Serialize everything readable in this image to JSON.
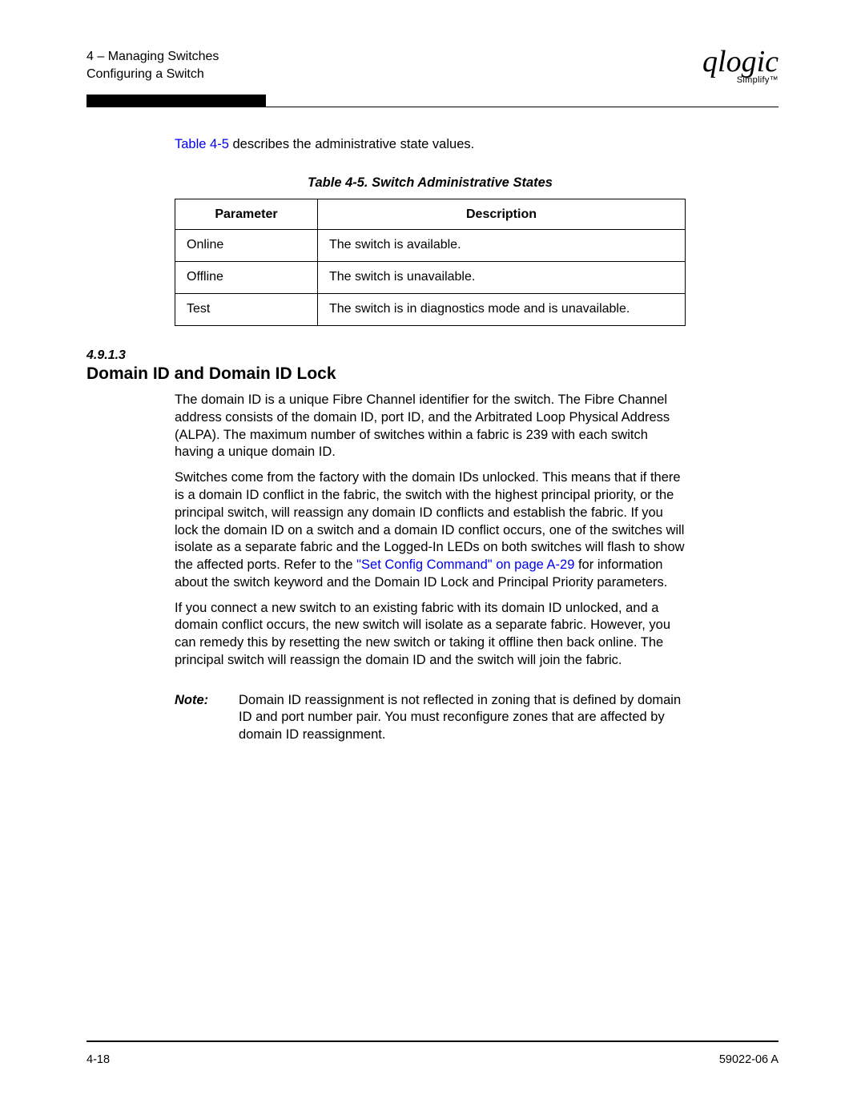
{
  "header": {
    "chapter_line": "4 – Managing Switches",
    "section_line": "Configuring a Switch",
    "logo_text": "qlogic",
    "logo_sub": "Simplify™"
  },
  "intro": {
    "pre_link": "",
    "link_text": "Table 4-5",
    "post_link": " describes the administrative state values."
  },
  "table": {
    "caption": "Table 4-5. Switch Administrative States",
    "columns": [
      "Parameter",
      "Description"
    ],
    "rows": [
      [
        "Online",
        "The switch is available."
      ],
      [
        "Offline",
        "The switch is unavailable."
      ],
      [
        "Test",
        "The switch is in diagnostics mode and is unavailable."
      ]
    ]
  },
  "section": {
    "number": "4.9.1.3",
    "title": "Domain ID and Domain ID Lock",
    "p1": "The domain ID is a unique Fibre Channel identifier for the switch. The Fibre Channel address consists of the domain ID, port ID, and the Arbitrated Loop Physical Address (ALPA). The maximum number of switches within a fabric is 239 with each switch having a unique domain ID.",
    "p2_pre": "Switches come from the factory with the domain IDs unlocked. This means that if there is a domain ID conflict in the fabric, the switch with the highest principal priority, or the principal switch, will reassign any domain ID conflicts and establish the fabric. If you lock the domain ID on a switch and a domain ID conflict occurs, one of the switches will isolate as a separate fabric and the Logged-In LEDs on both switches will flash to show the affected ports. Refer to the ",
    "p2_link": "\"Set Config Command\" on page A-29",
    "p2_post": " for information about the switch keyword and the Domain ID Lock and Principal Priority parameters.",
    "p3": "If you connect a new switch to an existing fabric with its domain ID unlocked, and a domain conflict occurs, the new switch will isolate as a separate fabric. However, you can remedy this by resetting the new switch or taking it offline then back online. The principal switch will reassign the domain ID and the switch will join the fabric.",
    "note_label": "Note:",
    "note_body": "Domain ID reassignment is not reflected in zoning that is defined by domain ID and port number pair. You must reconfigure zones that are affected by domain ID reassignment."
  },
  "footer": {
    "page": "4-18",
    "doc": "59022-06 A"
  },
  "colors": {
    "link": "#0000ee",
    "text": "#000000",
    "background": "#ffffff"
  }
}
